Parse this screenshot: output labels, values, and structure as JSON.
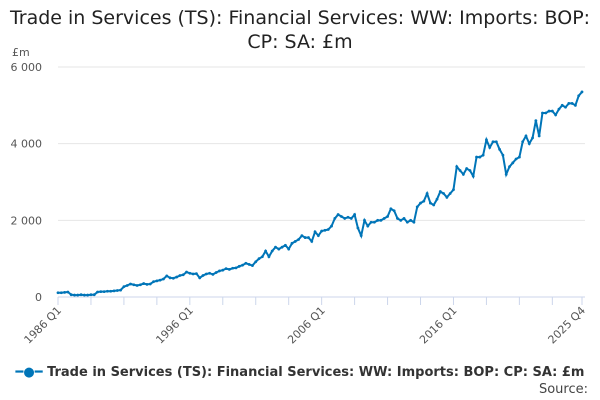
{
  "chart_data": {
    "type": "line",
    "title": "Trade in Services (TS): Financial Services: WW: Imports: BOP: CP: SA: £m",
    "ylabel": "£m",
    "ylim": [
      0,
      6000
    ],
    "yticks": [
      "0",
      "2 000",
      "4 000",
      "6 000"
    ],
    "ytick_values": [
      0,
      2000,
      4000,
      6000
    ],
    "xticks": [
      "1986 Q1",
      "1996 Q1",
      "2006 Q1",
      "2016 Q1",
      "2025 Q4"
    ],
    "xtick_index": [
      0,
      40,
      80,
      120,
      159
    ],
    "x_start": "1986 Q1",
    "x_end": "2025 Q4",
    "grid": true,
    "legend_position": "bottom",
    "color": "#0075b8",
    "series": [
      {
        "name": "Trade in Services (TS): Financial Services: WW: Imports: BOP: CP: SA: £m",
        "values": [
          110,
          110,
          120,
          130,
          60,
          50,
          50,
          60,
          50,
          50,
          60,
          60,
          130,
          140,
          140,
          150,
          150,
          160,
          170,
          180,
          270,
          300,
          340,
          320,
          300,
          320,
          350,
          330,
          340,
          400,
          420,
          440,
          470,
          550,
          500,
          490,
          520,
          560,
          580,
          650,
          620,
          600,
          610,
          500,
          560,
          600,
          620,
          590,
          640,
          680,
          700,
          740,
          720,
          750,
          760,
          800,
          830,
          880,
          850,
          820,
          920,
          1000,
          1050,
          1200,
          1050,
          1200,
          1300,
          1250,
          1300,
          1350,
          1250,
          1400,
          1450,
          1500,
          1600,
          1550,
          1550,
          1450,
          1700,
          1600,
          1720,
          1740,
          1760,
          1850,
          2050,
          2150,
          2100,
          2050,
          2080,
          2050,
          2150,
          1800,
          1600,
          2000,
          1850,
          1950,
          1950,
          2000,
          2000,
          2050,
          2100,
          2300,
          2250,
          2050,
          2000,
          2050,
          1950,
          2000,
          1950,
          2350,
          2450,
          2500,
          2700,
          2450,
          2400,
          2550,
          2750,
          2700,
          2600,
          2700,
          2800,
          3400,
          3300,
          3200,
          3350,
          3300,
          3150,
          3650,
          3650,
          3700,
          4100,
          3900,
          4050,
          4050,
          3850,
          3700,
          3200,
          3400,
          3500,
          3600,
          3650,
          4050,
          4200,
          4000,
          4150,
          4600,
          4200,
          4800,
          4800,
          4850,
          4850,
          4750,
          4900,
          5000,
          4950,
          5050,
          5050,
          5000,
          5250,
          5350
        ]
      }
    ]
  },
  "source_label": "Source:"
}
